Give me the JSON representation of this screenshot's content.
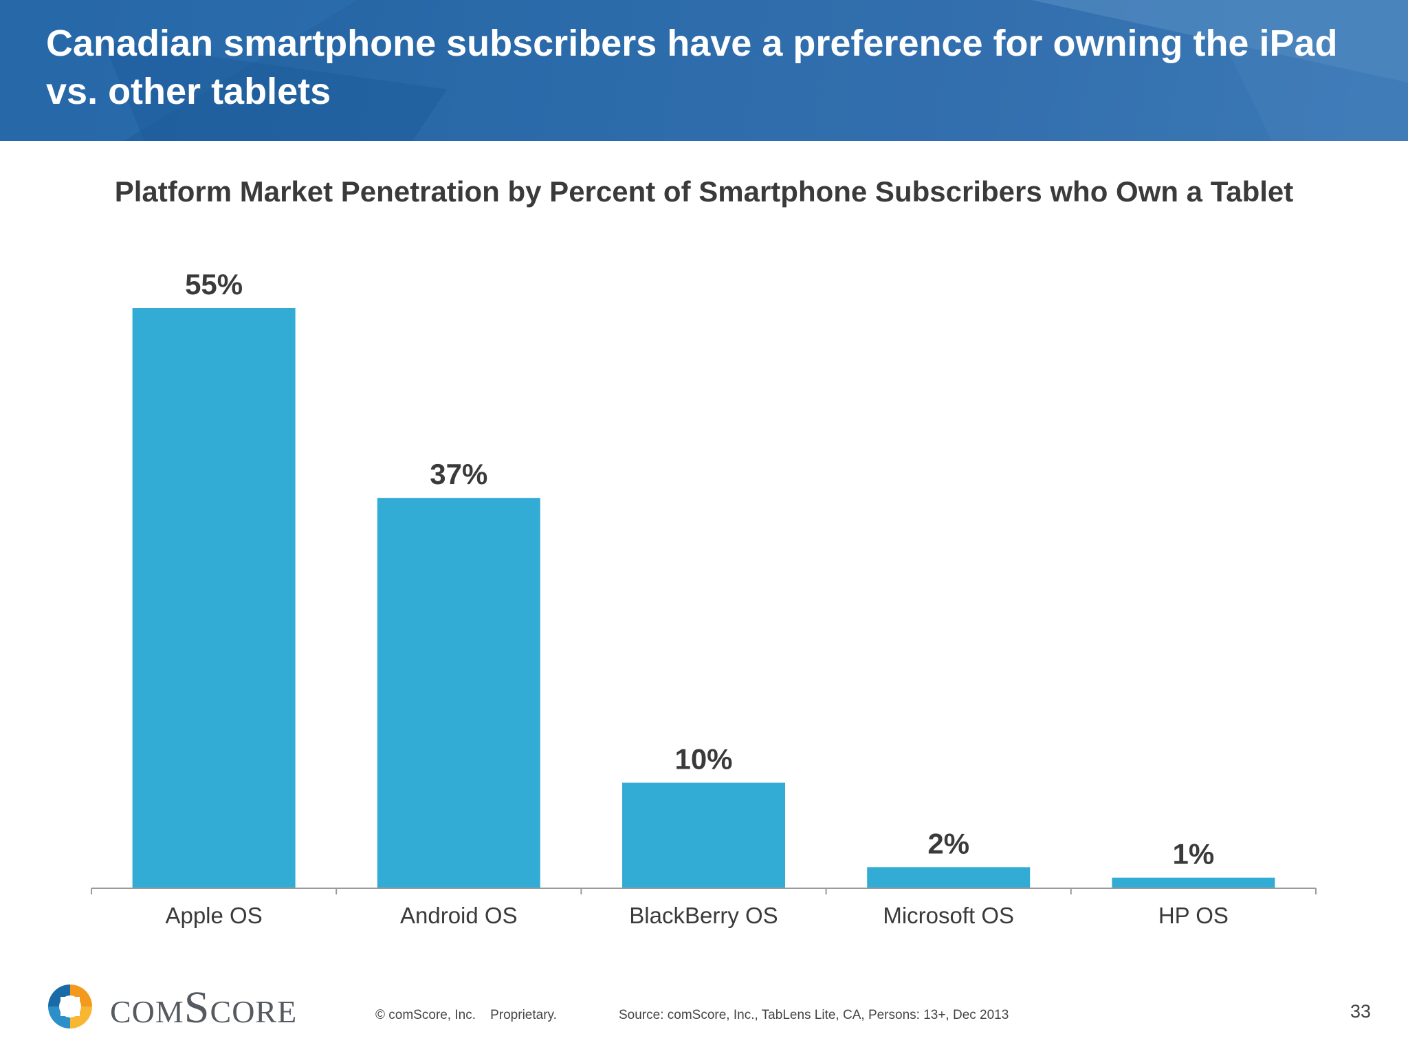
{
  "slide": {
    "title": "Canadian smartphone subscribers have a preference for owning the iPad vs. other tablets",
    "page_number": "33"
  },
  "footer": {
    "logo_text": "comScore",
    "copyright": "© comScore, Inc.    Proprietary.",
    "source": "Source: comScore, Inc., TabLens Lite, CA, Persons: 13+, Dec 2013"
  },
  "colors": {
    "header_blue": "#2a6aa9",
    "bar": "#33acd5",
    "axis": "#9a9a9a",
    "label_text": "#3a3a3a"
  },
  "chart_data": {
    "type": "bar",
    "title": "Platform Market Penetration by Percent of Smartphone Subscribers who Own a Tablet",
    "categories": [
      "Apple OS",
      "Android OS",
      "BlackBerry OS",
      "Microsoft OS",
      "HP OS"
    ],
    "values": [
      55,
      37,
      10,
      2,
      1
    ],
    "data_labels": [
      "55%",
      "37%",
      "10%",
      "2%",
      "1%"
    ],
    "ylim": [
      0,
      55
    ],
    "xlabel": "",
    "ylabel": "",
    "grid": false,
    "legend": "none"
  }
}
